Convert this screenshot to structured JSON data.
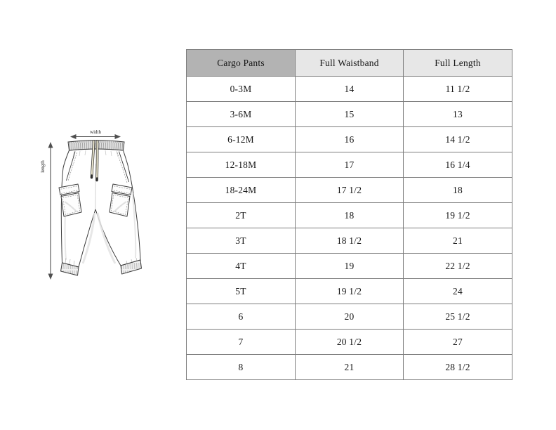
{
  "page": {
    "background": "#ffffff"
  },
  "diagram": {
    "description": "technical flat sketch of kids cargo jogger pants with measurement arrows",
    "width_label": "width",
    "length_label": "length",
    "drawstring_color": "#ece7cf",
    "waistband_fill": "#dedede",
    "outline_color": "#3c3c3c"
  },
  "table": {
    "columns": [
      "Cargo Pants",
      "Full Waistband",
      "Full Length"
    ],
    "header_bg_first": "#b3b3b3",
    "header_bg": "#e7e7e7",
    "border_color": "#7d7d7d",
    "rows": [
      [
        "0-3M",
        "14",
        "11 1/2"
      ],
      [
        "3-6M",
        "15",
        "13"
      ],
      [
        "6-12M",
        "16",
        "14 1/2"
      ],
      [
        "12-18M",
        "17",
        "16 1/4"
      ],
      [
        "18-24M",
        "17 1/2",
        "18"
      ],
      [
        "2T",
        "18",
        "19 1/2"
      ],
      [
        "3T",
        "18 1/2",
        "21"
      ],
      [
        "4T",
        "19",
        "22 1/2"
      ],
      [
        "5T",
        "19 1/2",
        "24"
      ],
      [
        "6",
        "20",
        "25 1/2"
      ],
      [
        "7",
        "20 1/2",
        "27"
      ],
      [
        "8",
        "21",
        "28 1/2"
      ]
    ]
  }
}
